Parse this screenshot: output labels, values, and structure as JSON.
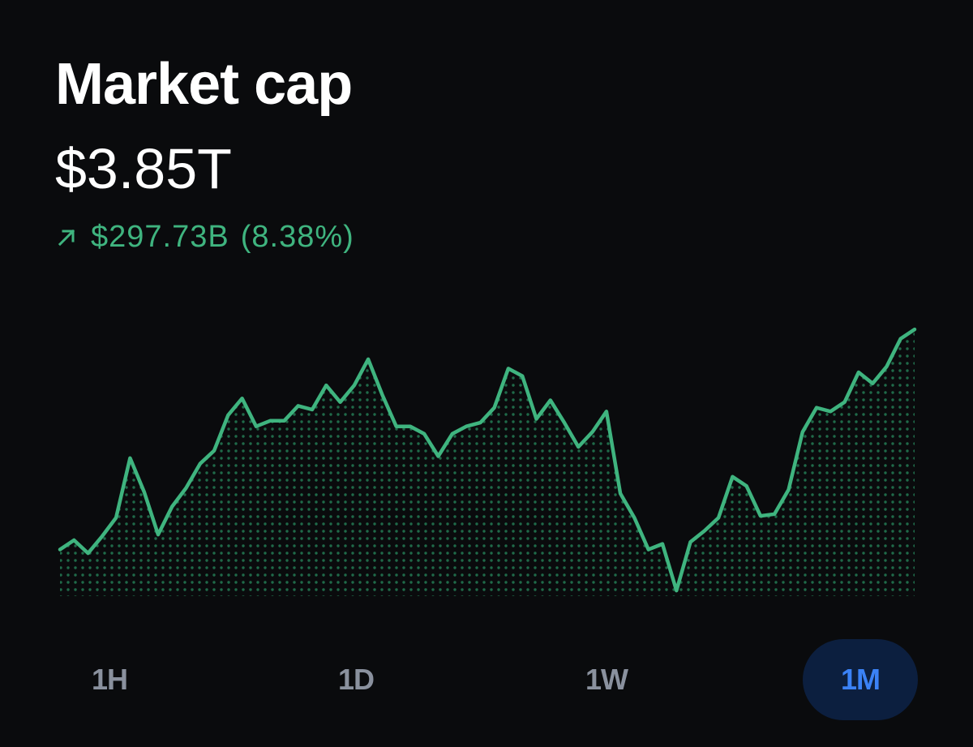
{
  "header": {
    "title": "Market cap",
    "value": "$3.85T",
    "change_amount": "$297.73B",
    "change_percent": "(8.38%)",
    "change_direction_icon": "arrow-up-right-icon",
    "positive_color": "#3fb47f"
  },
  "chart_data": {
    "type": "area",
    "title": "",
    "xlabel": "",
    "ylabel": "",
    "grid": false,
    "fill": "dotted",
    "line_color": "#3fb47f",
    "series": [
      {
        "values": [
          20,
          25,
          18,
          27,
          37,
          69,
          51,
          28,
          43,
          53,
          66,
          73,
          92,
          101,
          86,
          89,
          89,
          97,
          95,
          108,
          99,
          108,
          122,
          103,
          86,
          86,
          82,
          70,
          82,
          86,
          88,
          96,
          117,
          113,
          90,
          100,
          88,
          75,
          83,
          94,
          50,
          37,
          20,
          23,
          -2,
          24,
          30,
          37,
          59,
          54,
          38,
          39,
          52,
          83,
          96,
          94,
          99,
          115,
          109,
          118,
          133,
          138
        ]
      }
    ]
  },
  "ranges": {
    "items": [
      {
        "label": "1H"
      },
      {
        "label": "1D"
      },
      {
        "label": "1W"
      },
      {
        "label": "1M"
      }
    ],
    "active_index": 3,
    "active_bg": "#0c1f3f",
    "active_color": "#3b82f6"
  }
}
